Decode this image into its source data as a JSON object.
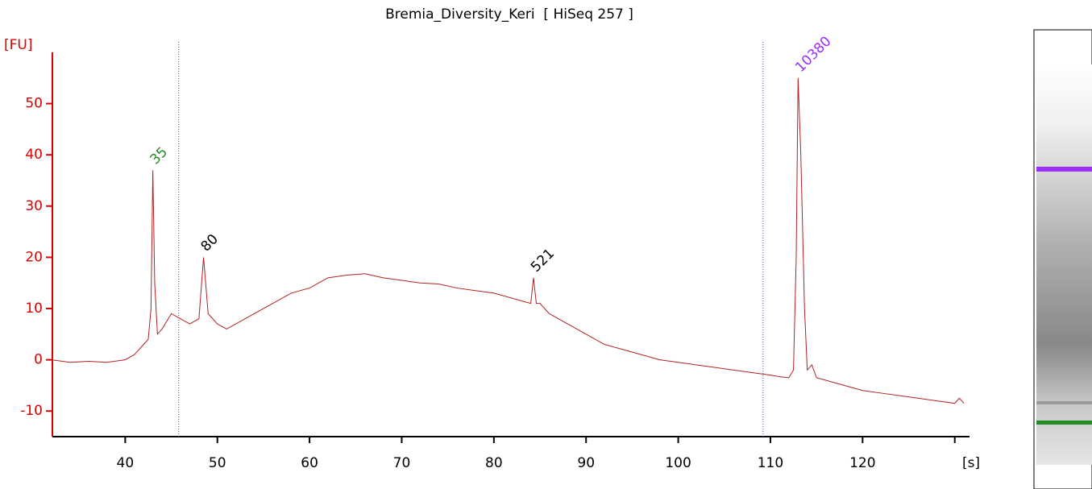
{
  "chart_data": {
    "type": "line",
    "title": "Bremia_Diversity_Keri  [ HiSeq 257 ]",
    "x_label": "[s]",
    "y_label": "[FU]",
    "x": [
      32,
      34,
      36,
      38,
      40,
      41,
      42,
      42.5,
      42.8,
      43,
      43.2,
      43.5,
      44,
      45,
      46,
      47,
      48,
      48.5,
      49,
      50,
      51,
      52,
      54,
      56,
      58,
      60,
      62,
      64,
      66,
      68,
      70,
      72,
      74,
      76,
      78,
      80,
      82,
      83,
      84,
      84.3,
      84.6,
      85,
      86,
      88,
      90,
      92,
      94,
      96,
      98,
      100,
      102,
      104,
      106,
      108,
      110,
      111,
      112,
      112.5,
      112.8,
      113,
      113.3,
      113.7,
      114,
      114.5,
      115,
      116,
      118,
      120,
      122,
      124,
      126,
      128,
      130,
      130.5,
      131
    ],
    "series": [
      {
        "color": "#b22222",
        "values": [
          0,
          -0.5,
          -0.3,
          -0.5,
          0,
          1,
          3,
          4,
          10,
          37,
          15,
          5,
          6,
          9,
          8,
          7,
          8,
          20,
          9,
          7,
          6,
          7,
          9,
          11,
          13,
          14,
          16,
          16.5,
          16.8,
          16,
          15.5,
          15,
          14.8,
          14,
          13.5,
          13,
          12,
          11.5,
          11,
          16,
          11,
          11,
          9,
          7,
          5,
          3,
          2,
          1,
          0,
          -0.5,
          -1,
          -1.5,
          -2,
          -2.5,
          -3,
          -3.3,
          -3.5,
          -2,
          20,
          55,
          40,
          10,
          -2,
          -1,
          -3.5,
          -4,
          -5,
          -6,
          -6.5,
          -7,
          -7.5,
          -8,
          -8.5,
          -7.5,
          -8.5
        ]
      }
    ],
    "xlim": [
      32.1,
      131.6
    ],
    "ylim": [
      -15,
      60
    ],
    "xticks": [
      40,
      50,
      60,
      70,
      80,
      90,
      100,
      110,
      120,
      130
    ],
    "yticks": [
      -10,
      0,
      10,
      20,
      30,
      40,
      50
    ],
    "axis_color": "#dd0000",
    "markers": [
      45.8,
      109.2
    ],
    "marker_color": "#5050c0",
    "annotations": [
      {
        "text": "35",
        "x": 43,
        "y": 37,
        "color": "#228b22"
      },
      {
        "text": "80",
        "x": 48.5,
        "y": 20,
        "color": "#000000"
      },
      {
        "text": "521",
        "x": 84.3,
        "y": 16,
        "color": "#000000"
      },
      {
        "text": "10380",
        "x": 113,
        "y": 55,
        "color": "#9b30ff"
      }
    ]
  }
}
